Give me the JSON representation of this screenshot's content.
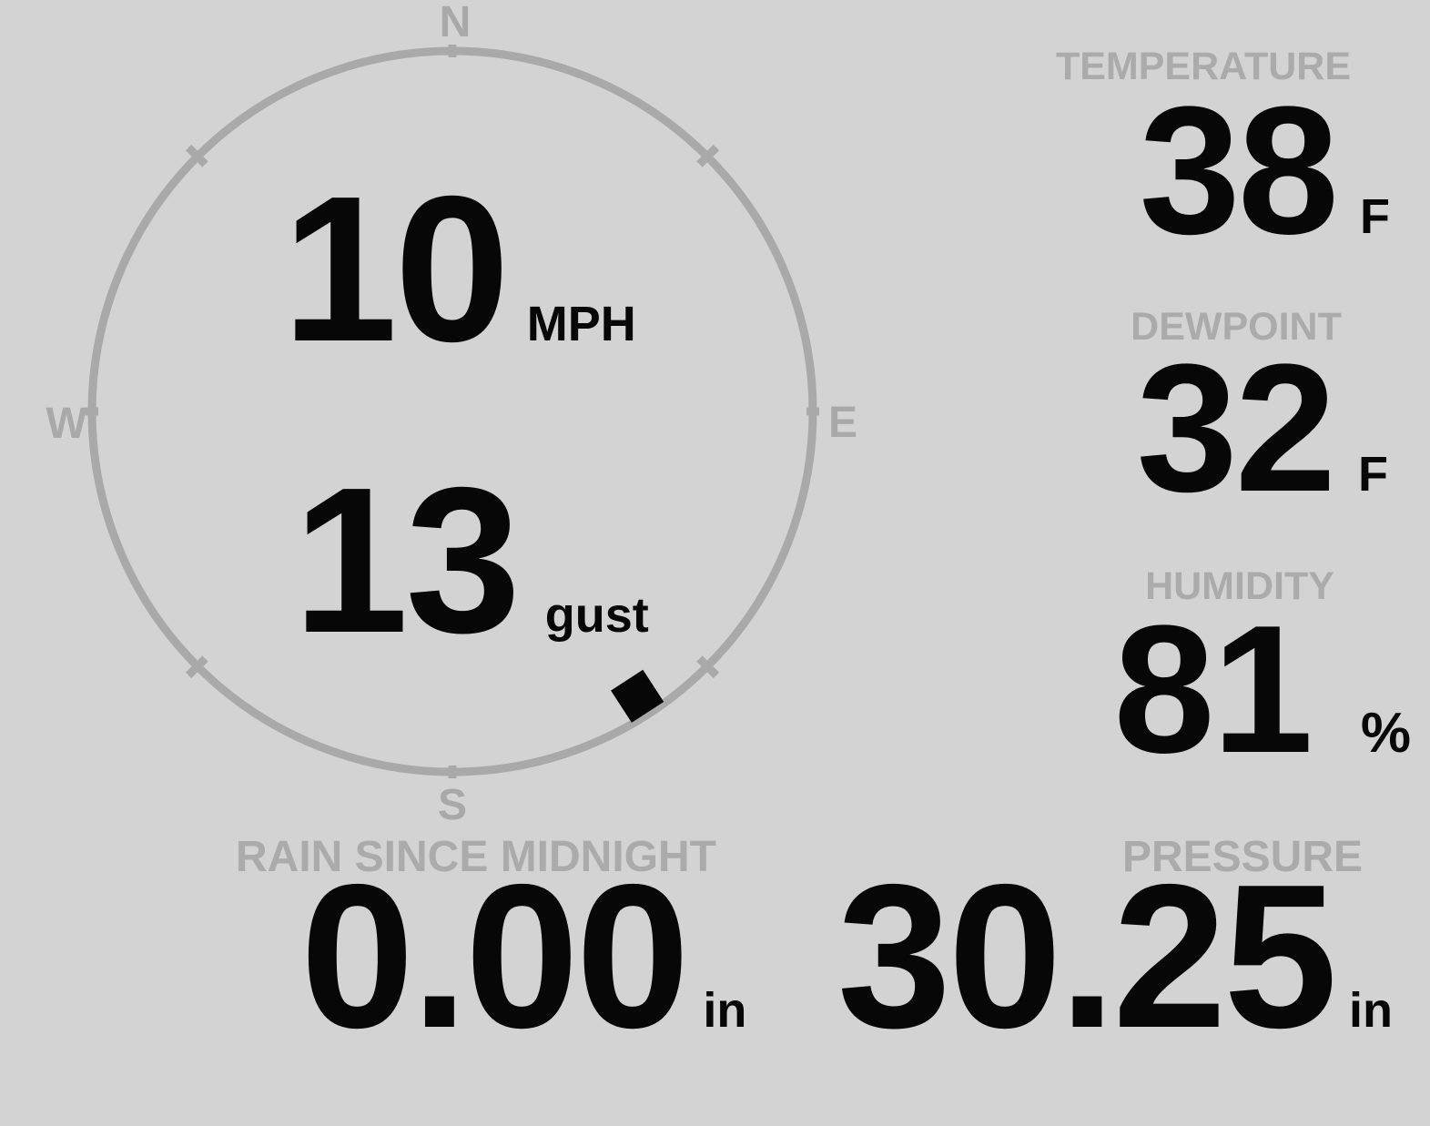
{
  "theme": {
    "background": "#d3d3d3",
    "muted_gray": "#ababab",
    "ring_gray": "#a9a9a9",
    "ink": "#070707"
  },
  "wind": {
    "cardinals": {
      "north": "N",
      "east": "E",
      "south": "S",
      "west": "W"
    },
    "speed_value": "10",
    "speed_unit": "MPH",
    "gust_value": "13",
    "gust_unit": "gust",
    "direction_degrees": 147
  },
  "metrics": [
    {
      "id": "temperature",
      "label": "TEMPERATURE",
      "value": "38",
      "unit": "F"
    },
    {
      "id": "dewpoint",
      "label": "DEWPOINT",
      "value": "32",
      "unit": "F"
    },
    {
      "id": "humidity",
      "label": "HUMIDITY",
      "value": "81",
      "unit": "%"
    }
  ],
  "bottom": [
    {
      "id": "rain",
      "label": "RAIN SINCE MIDNIGHT",
      "value": "0.00",
      "unit": "in"
    },
    {
      "id": "pressure",
      "label": "PRESSURE",
      "value": "30.25",
      "unit": "in"
    }
  ]
}
